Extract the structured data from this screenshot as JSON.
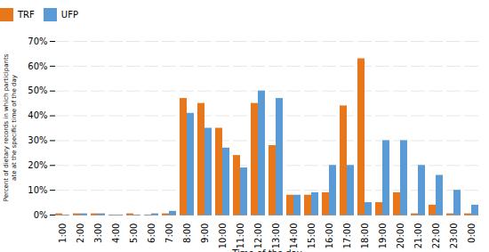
{
  "chart_data": {
    "type": "bar",
    "categories": [
      "1:00",
      "2:00",
      "3:00",
      "4:00",
      "5:00",
      "6:00",
      "7:00",
      "8:00",
      "9:00",
      "10:00",
      "11:00",
      "12:00",
      "13:00",
      "14:00",
      "15:00",
      "16:00",
      "17:00",
      "18:00",
      "19:00",
      "20:00",
      "21:00",
      "22:00",
      "23:00",
      "0:00"
    ],
    "series": [
      {
        "name": "TRF",
        "color": "#E8761A",
        "values": [
          0.5,
          0.5,
          0.5,
          0.0,
          0.5,
          0.0,
          0.5,
          47.0,
          45.0,
          35.0,
          24.0,
          45.0,
          28.0,
          8.0,
          8.0,
          9.0,
          44.0,
          63.0,
          5.0,
          9.0,
          0.5,
          4.0,
          0.5,
          0.5
        ]
      },
      {
        "name": "UFP",
        "color": "#5B9BD5",
        "values": [
          0.0,
          0.5,
          0.5,
          0.0,
          0.0,
          0.5,
          1.5,
          41.0,
          35.0,
          27.0,
          19.0,
          50.0,
          47.0,
          8.0,
          9.0,
          20.0,
          20.0,
          5.0,
          30.0,
          30.0,
          20.0,
          16.0,
          10.0,
          4.0
        ]
      }
    ],
    "ylabel": "Percent of dietary records in which participants\nate at the specific time of the day",
    "xlabel": "Time of the day",
    "ylim": [
      0,
      70
    ],
    "yticks": [
      {
        "value": 0,
        "label": "0%"
      },
      {
        "value": 10,
        "label": "10%"
      },
      {
        "value": 20,
        "label": "20%"
      },
      {
        "value": 30,
        "label": "30%"
      },
      {
        "value": 40,
        "label": "40%"
      },
      {
        "value": 50,
        "label": "50%"
      },
      {
        "value": 60,
        "label": "60%"
      },
      {
        "value": 70,
        "label": "70%"
      }
    ],
    "grid": true,
    "legend": "upper left"
  }
}
